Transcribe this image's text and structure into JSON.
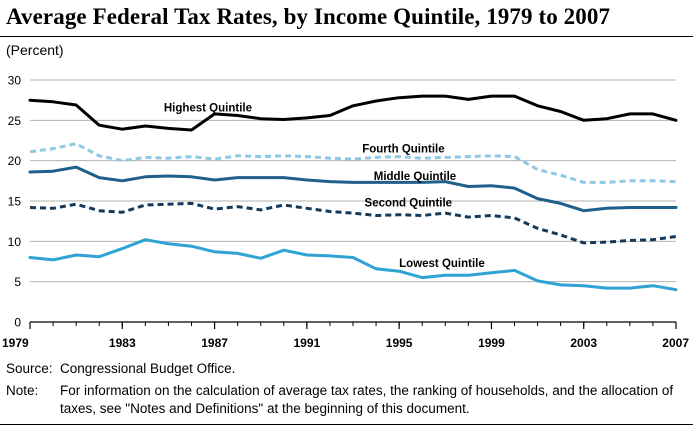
{
  "chart_data": {
    "type": "line",
    "title": "Average Federal Tax Rates, by Income Quintile, 1979 to 2007",
    "ylabel": "(Percent)",
    "xlabel": "",
    "xlim": [
      1979,
      2007
    ],
    "ylim": [
      0,
      30
    ],
    "y_ticks": [
      "0",
      "5",
      "10",
      "15",
      "20",
      "25",
      "30"
    ],
    "x_ticks": [
      "1979",
      "1983",
      "1987",
      "1991",
      "1995",
      "1999",
      "2003",
      "2007"
    ],
    "x": [
      1979,
      1980,
      1981,
      1982,
      1983,
      1984,
      1985,
      1986,
      1987,
      1988,
      1989,
      1990,
      1991,
      1992,
      1993,
      1994,
      1995,
      1996,
      1997,
      1998,
      1999,
      2000,
      2001,
      2002,
      2003,
      2004,
      2005,
      2006,
      2007
    ],
    "grid": "horizontal",
    "series": [
      {
        "name": "Highest Quintile",
        "color": "#000000",
        "dash": "solid",
        "values": [
          27.5,
          27.3,
          26.9,
          24.4,
          23.9,
          24.3,
          24.0,
          23.8,
          25.8,
          25.6,
          25.2,
          25.1,
          25.3,
          25.6,
          26.8,
          27.4,
          27.8,
          28.0,
          28.0,
          27.6,
          28.0,
          28.0,
          26.8,
          26.1,
          25.0,
          25.2,
          25.8,
          25.8,
          25.0
        ]
      },
      {
        "name": "Fourth Quintile",
        "color": "#8ec8e4",
        "dash": "dashed",
        "values": [
          21.1,
          21.5,
          22.1,
          20.6,
          20.0,
          20.4,
          20.3,
          20.5,
          20.2,
          20.6,
          20.5,
          20.6,
          20.5,
          20.3,
          20.2,
          20.4,
          20.5,
          20.3,
          20.4,
          20.5,
          20.6,
          20.5,
          18.9,
          18.2,
          17.3,
          17.3,
          17.5,
          17.5,
          17.4
        ]
      },
      {
        "name": "Middle Quintile",
        "color": "#1f5f8c",
        "dash": "solid",
        "values": [
          18.6,
          18.7,
          19.2,
          17.9,
          17.5,
          18.0,
          18.1,
          18.0,
          17.6,
          17.9,
          17.9,
          17.9,
          17.6,
          17.4,
          17.3,
          17.3,
          17.3,
          17.3,
          17.4,
          16.8,
          16.9,
          16.6,
          15.3,
          14.7,
          13.8,
          14.1,
          14.2,
          14.2,
          14.2
        ]
      },
      {
        "name": "Second Quintile",
        "color": "#14395a",
        "dash": "dashed",
        "values": [
          14.2,
          14.1,
          14.6,
          13.8,
          13.6,
          14.5,
          14.6,
          14.7,
          14.0,
          14.3,
          13.9,
          14.5,
          14.1,
          13.7,
          13.5,
          13.2,
          13.3,
          13.2,
          13.5,
          13.0,
          13.2,
          12.9,
          11.6,
          10.8,
          9.8,
          9.9,
          10.1,
          10.2,
          10.6
        ]
      },
      {
        "name": "Lowest Quintile",
        "color": "#2ea3d4",
        "dash": "solid",
        "values": [
          8.0,
          7.7,
          8.3,
          8.1,
          9.1,
          10.2,
          9.7,
          9.4,
          8.7,
          8.5,
          7.9,
          8.9,
          8.3,
          8.2,
          8.0,
          6.6,
          6.3,
          5.5,
          5.8,
          5.8,
          6.1,
          6.4,
          5.1,
          4.6,
          4.5,
          4.2,
          4.2,
          4.5,
          4.0
        ]
      }
    ],
    "labels": [
      {
        "text": "Highest Quintile",
        "x": 1984.8,
        "y": 26.6
      },
      {
        "text": "Fourth Quintile",
        "x": 1993.4,
        "y": 21.5
      },
      {
        "text": "Middle Quintile",
        "x": 1993.9,
        "y": 18.1
      },
      {
        "text": "Second Quintile",
        "x": 1993.5,
        "y": 14.8
      },
      {
        "text": "Lowest Quintile",
        "x": 1995.0,
        "y": 7.3
      }
    ]
  },
  "notes": {
    "source_key": "Source:",
    "source_text": "Congressional Budget Office.",
    "note_key": "Note:",
    "note_text": "For information on the calculation of average tax rates, the ranking of households, and the allocation of taxes, see \"Notes and Definitions\" at the beginning of this document."
  }
}
